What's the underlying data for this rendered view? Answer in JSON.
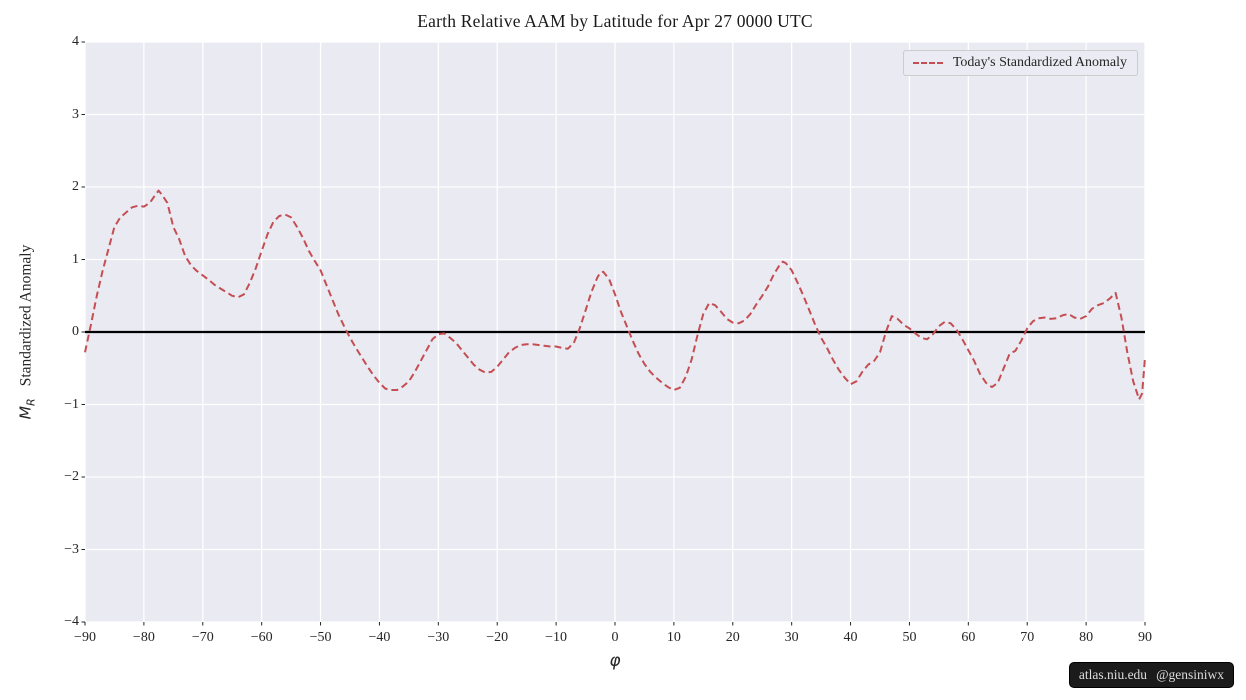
{
  "colors": {
    "figure_bg": "#ffffff",
    "axes_bg": "#eaeaf2",
    "grid": "#ffffff",
    "zero_line": "#000000",
    "line": "#c44e52",
    "tick": "#262626",
    "badge_bg": "#1b1b1b",
    "badge_text": "#dcdcdc"
  },
  "badge": {
    "site": "atlas.niu.edu",
    "handle": "@gensiniwx"
  },
  "chart_data": {
    "type": "line",
    "title": "Earth Relative AAM by Latitude for Apr 27 0000 UTC",
    "xlabel": "φ",
    "ylabel_math": "M",
    "ylabel_sub": "R",
    "ylabel_text": "Standardized Anomaly",
    "xlim": [
      -90,
      90
    ],
    "ylim": [
      -4,
      4
    ],
    "grid": true,
    "zero_line": true,
    "legend": {
      "position": "upper right",
      "entries": [
        {
          "label": "Today's Standardized Anomaly",
          "color": "#c44e52",
          "style": "dashed"
        }
      ]
    },
    "x_ticks": [
      {
        "v": -90,
        "label": "−90"
      },
      {
        "v": -80,
        "label": "−80"
      },
      {
        "v": -70,
        "label": "−70"
      },
      {
        "v": -60,
        "label": "−60"
      },
      {
        "v": -50,
        "label": "−50"
      },
      {
        "v": -40,
        "label": "−40"
      },
      {
        "v": -30,
        "label": "−30"
      },
      {
        "v": -20,
        "label": "−20"
      },
      {
        "v": -10,
        "label": "−10"
      },
      {
        "v": 0,
        "label": "0"
      },
      {
        "v": 10,
        "label": "10"
      },
      {
        "v": 20,
        "label": "20"
      },
      {
        "v": 30,
        "label": "30"
      },
      {
        "v": 40,
        "label": "40"
      },
      {
        "v": 50,
        "label": "50"
      },
      {
        "v": 60,
        "label": "60"
      },
      {
        "v": 70,
        "label": "70"
      },
      {
        "v": 80,
        "label": "80"
      },
      {
        "v": 90,
        "label": "90"
      }
    ],
    "y_ticks": [
      {
        "v": -4,
        "label": "−4"
      },
      {
        "v": -3,
        "label": "−3"
      },
      {
        "v": -2,
        "label": "−2"
      },
      {
        "v": -1,
        "label": "−1"
      },
      {
        "v": 0,
        "label": "0"
      },
      {
        "v": 1,
        "label": "1"
      },
      {
        "v": 2,
        "label": "2"
      },
      {
        "v": 3,
        "label": "3"
      },
      {
        "v": 4,
        "label": "4"
      }
    ],
    "series": [
      {
        "name": "Today's Standardized Anomaly",
        "color": "#c44e52",
        "dash": "7 4",
        "points": [
          [
            -90,
            -0.28
          ],
          [
            -89,
            0.1
          ],
          [
            -88,
            0.5
          ],
          [
            -87,
            0.85
          ],
          [
            -86,
            1.15
          ],
          [
            -85,
            1.45
          ],
          [
            -84,
            1.58
          ],
          [
            -83,
            1.65
          ],
          [
            -82,
            1.72
          ],
          [
            -81,
            1.74
          ],
          [
            -80,
            1.73
          ],
          [
            -79,
            1.78
          ],
          [
            -78,
            1.9
          ],
          [
            -77.5,
            1.95
          ],
          [
            -77,
            1.9
          ],
          [
            -76,
            1.78
          ],
          [
            -75,
            1.45
          ],
          [
            -74,
            1.28
          ],
          [
            -73,
            1.05
          ],
          [
            -72,
            0.92
          ],
          [
            -71,
            0.84
          ],
          [
            -70,
            0.78
          ],
          [
            -69,
            0.72
          ],
          [
            -68,
            0.65
          ],
          [
            -67,
            0.6
          ],
          [
            -66,
            0.55
          ],
          [
            -65,
            0.5
          ],
          [
            -64,
            0.48
          ],
          [
            -63,
            0.52
          ],
          [
            -62,
            0.68
          ],
          [
            -61,
            0.88
          ],
          [
            -60,
            1.12
          ],
          [
            -59,
            1.35
          ],
          [
            -58,
            1.52
          ],
          [
            -57,
            1.6
          ],
          [
            -56,
            1.62
          ],
          [
            -55,
            1.58
          ],
          [
            -54,
            1.45
          ],
          [
            -53,
            1.3
          ],
          [
            -52,
            1.12
          ],
          [
            -51,
            0.98
          ],
          [
            -50,
            0.85
          ],
          [
            -49,
            0.65
          ],
          [
            -48,
            0.45
          ],
          [
            -47,
            0.25
          ],
          [
            -46,
            0.08
          ],
          [
            -45,
            -0.08
          ],
          [
            -44,
            -0.22
          ],
          [
            -43,
            -0.35
          ],
          [
            -42,
            -0.48
          ],
          [
            -41,
            -0.6
          ],
          [
            -40,
            -0.7
          ],
          [
            -39,
            -0.78
          ],
          [
            -38,
            -0.8
          ],
          [
            -37,
            -0.8
          ],
          [
            -36,
            -0.75
          ],
          [
            -35,
            -0.68
          ],
          [
            -34,
            -0.55
          ],
          [
            -33,
            -0.4
          ],
          [
            -32,
            -0.25
          ],
          [
            -31,
            -0.1
          ],
          [
            -30,
            -0.03
          ],
          [
            -29,
            -0.02
          ],
          [
            -28,
            -0.08
          ],
          [
            -27,
            -0.15
          ],
          [
            -26,
            -0.25
          ],
          [
            -25,
            -0.35
          ],
          [
            -24,
            -0.45
          ],
          [
            -23,
            -0.52
          ],
          [
            -22,
            -0.56
          ],
          [
            -21,
            -0.55
          ],
          [
            -20,
            -0.48
          ],
          [
            -19,
            -0.38
          ],
          [
            -18,
            -0.28
          ],
          [
            -17,
            -0.22
          ],
          [
            -16,
            -0.18
          ],
          [
            -15,
            -0.17
          ],
          [
            -14,
            -0.17
          ],
          [
            -13,
            -0.18
          ],
          [
            -12,
            -0.19
          ],
          [
            -11,
            -0.2
          ],
          [
            -10,
            -0.2
          ],
          [
            -9,
            -0.22
          ],
          [
            -8,
            -0.23
          ],
          [
            -7,
            -0.15
          ],
          [
            -6,
            0.05
          ],
          [
            -5,
            0.3
          ],
          [
            -4,
            0.55
          ],
          [
            -3,
            0.75
          ],
          [
            -2.5,
            0.82
          ],
          [
            -2,
            0.83
          ],
          [
            -1,
            0.73
          ],
          [
            0,
            0.52
          ],
          [
            1,
            0.28
          ],
          [
            2,
            0.08
          ],
          [
            3,
            -0.12
          ],
          [
            4,
            -0.3
          ],
          [
            5,
            -0.44
          ],
          [
            6,
            -0.55
          ],
          [
            7,
            -0.63
          ],
          [
            8,
            -0.7
          ],
          [
            9,
            -0.76
          ],
          [
            10,
            -0.8
          ],
          [
            11,
            -0.77
          ],
          [
            12,
            -0.62
          ],
          [
            13,
            -0.38
          ],
          [
            14,
            -0.05
          ],
          [
            15,
            0.25
          ],
          [
            16,
            0.4
          ],
          [
            17,
            0.37
          ],
          [
            18,
            0.28
          ],
          [
            19,
            0.18
          ],
          [
            20,
            0.13
          ],
          [
            21,
            0.12
          ],
          [
            22,
            0.16
          ],
          [
            23,
            0.25
          ],
          [
            24,
            0.38
          ],
          [
            25,
            0.5
          ],
          [
            26,
            0.63
          ],
          [
            27,
            0.8
          ],
          [
            28,
            0.93
          ],
          [
            28.5,
            0.97
          ],
          [
            29,
            0.95
          ],
          [
            30,
            0.85
          ],
          [
            31,
            0.68
          ],
          [
            32,
            0.5
          ],
          [
            33,
            0.3
          ],
          [
            34,
            0.1
          ],
          [
            35,
            -0.08
          ],
          [
            36,
            -0.22
          ],
          [
            37,
            -0.38
          ],
          [
            38,
            -0.52
          ],
          [
            39,
            -0.63
          ],
          [
            40,
            -0.72
          ],
          [
            41,
            -0.68
          ],
          [
            42,
            -0.55
          ],
          [
            43,
            -0.45
          ],
          [
            44,
            -0.4
          ],
          [
            45,
            -0.28
          ],
          [
            46,
            0.0
          ],
          [
            47,
            0.22
          ],
          [
            48,
            0.18
          ],
          [
            49,
            0.1
          ],
          [
            50,
            0.05
          ],
          [
            51,
            -0.02
          ],
          [
            52,
            -0.08
          ],
          [
            53,
            -0.1
          ],
          [
            54,
            -0.03
          ],
          [
            55,
            0.08
          ],
          [
            56,
            0.14
          ],
          [
            57,
            0.12
          ],
          [
            58,
            0.03
          ],
          [
            59,
            -0.1
          ],
          [
            60,
            -0.25
          ],
          [
            61,
            -0.4
          ],
          [
            62,
            -0.58
          ],
          [
            63,
            -0.7
          ],
          [
            64,
            -0.76
          ],
          [
            65,
            -0.7
          ],
          [
            66,
            -0.5
          ],
          [
            67,
            -0.3
          ],
          [
            68,
            -0.26
          ],
          [
            69,
            -0.12
          ],
          [
            70,
            0.05
          ],
          [
            71,
            0.15
          ],
          [
            72,
            0.19
          ],
          [
            73,
            0.2
          ],
          [
            74,
            0.18
          ],
          [
            75,
            0.19
          ],
          [
            76,
            0.23
          ],
          [
            77,
            0.25
          ],
          [
            78,
            0.2
          ],
          [
            79,
            0.18
          ],
          [
            80,
            0.22
          ],
          [
            81,
            0.32
          ],
          [
            82,
            0.37
          ],
          [
            83,
            0.4
          ],
          [
            84,
            0.46
          ],
          [
            85,
            0.54
          ],
          [
            86,
            0.2
          ],
          [
            87,
            -0.28
          ],
          [
            88,
            -0.68
          ],
          [
            89,
            -0.93
          ],
          [
            89.5,
            -0.85
          ],
          [
            90,
            -0.35
          ]
        ]
      }
    ]
  }
}
